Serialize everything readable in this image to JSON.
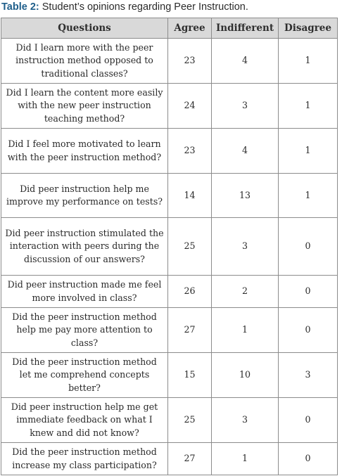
{
  "caption": {
    "label": "Table 2:",
    "text": "Student’s opinions regarding Peer Instruction."
  },
  "table": {
    "headers": {
      "question": "Questions",
      "agree": "Agree",
      "indifferent": "Indifferent",
      "disagree": "Disagree"
    },
    "rows": [
      {
        "question": "Did I learn more with the peer instruction method opposed to traditional classes?",
        "agree": "23",
        "indifferent": "4",
        "disagree": "1"
      },
      {
        "question": "Did I learn the content more easily with the new peer instruction teaching method?",
        "agree": "24",
        "indifferent": "3",
        "disagree": "1"
      },
      {
        "question": "Did I feel more motivated to learn with the peer instruction method?",
        "agree": "23",
        "indifferent": "4",
        "disagree": "1"
      },
      {
        "question": "Did peer instruction help me improve my performance on tests?",
        "agree": "14",
        "indifferent": "13",
        "disagree": "1"
      },
      {
        "question": "Did peer instruction stimulated the interaction with peers during the discussion of our answers?",
        "agree": "25",
        "indifferent": "3",
        "disagree": "0"
      },
      {
        "question": "Did peer instruction made me feel more involved in class?",
        "agree": "26",
        "indifferent": "2",
        "disagree": "0"
      },
      {
        "question": "Did the peer instruction method help me pay more attention to class?",
        "agree": "27",
        "indifferent": "1",
        "disagree": "0"
      },
      {
        "question": "Did the peer instruction method let me comprehend concepts better?",
        "agree": "15",
        "indifferent": "10",
        "disagree": "3"
      },
      {
        "question": "Did peer instruction help me get immediate feedback on what I knew and did not know?",
        "agree": "25",
        "indifferent": "3",
        "disagree": "0"
      },
      {
        "question": "Did the peer instruction method increase my class participation?",
        "agree": "27",
        "indifferent": "1",
        "disagree": "0"
      }
    ]
  }
}
